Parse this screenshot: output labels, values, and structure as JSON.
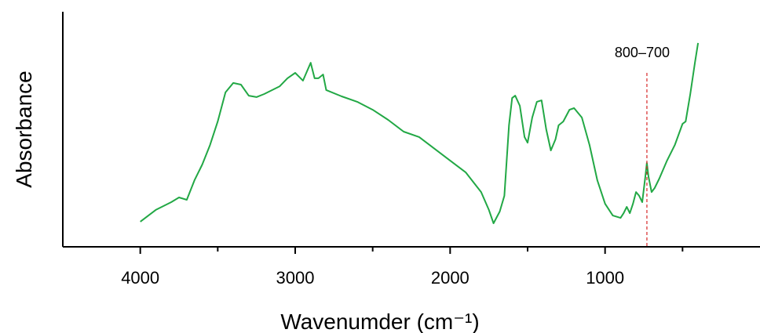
{
  "chart_data": {
    "type": "line",
    "xlabel": "Wavenumder (cm⁻¹)",
    "ylabel": "Absorbance",
    "x": [
      4000,
      3900,
      3800,
      3750,
      3700,
      3650,
      3600,
      3550,
      3500,
      3450,
      3400,
      3350,
      3300,
      3250,
      3200,
      3100,
      3050,
      3000,
      2950,
      2900,
      2875,
      2850,
      2820,
      2800,
      2700,
      2600,
      2500,
      2400,
      2300,
      2200,
      2100,
      2000,
      1900,
      1800,
      1750,
      1720,
      1680,
      1650,
      1620,
      1600,
      1580,
      1550,
      1520,
      1500,
      1470,
      1440,
      1410,
      1380,
      1350,
      1320,
      1300,
      1270,
      1230,
      1200,
      1150,
      1100,
      1050,
      1000,
      950,
      900,
      880,
      860,
      840,
      820,
      800,
      780,
      760,
      740,
      730,
      720,
      700,
      680,
      650,
      600,
      550,
      500,
      480,
      450,
      420,
      400
    ],
    "values": [
      0.107,
      0.157,
      0.19,
      0.21,
      0.2,
      0.283,
      0.35,
      0.433,
      0.533,
      0.657,
      0.697,
      0.69,
      0.643,
      0.637,
      0.65,
      0.683,
      0.717,
      0.74,
      0.707,
      0.783,
      0.717,
      0.717,
      0.733,
      0.667,
      0.64,
      0.617,
      0.583,
      0.54,
      0.49,
      0.467,
      0.417,
      0.367,
      0.317,
      0.233,
      0.157,
      0.1,
      0.15,
      0.217,
      0.517,
      0.633,
      0.643,
      0.6,
      0.467,
      0.443,
      0.55,
      0.617,
      0.623,
      0.5,
      0.41,
      0.457,
      0.517,
      0.533,
      0.583,
      0.59,
      0.55,
      0.433,
      0.283,
      0.183,
      0.133,
      0.123,
      0.143,
      0.17,
      0.143,
      0.183,
      0.233,
      0.217,
      0.19,
      0.3,
      0.357,
      0.3,
      0.233,
      0.25,
      0.29,
      0.367,
      0.433,
      0.523,
      0.533,
      0.65,
      0.783,
      0.867
    ],
    "color": "#22a845",
    "xlim": [
      4500,
      0
    ],
    "ylim": [
      0,
      1
    ],
    "xticks": [
      4000,
      3000,
      2000,
      1000
    ],
    "xminorticks": [
      3500,
      2500,
      1500,
      500
    ],
    "annotation": {
      "text": "800–700",
      "x": 730,
      "y": 0.74,
      "color": "#d62728"
    }
  }
}
